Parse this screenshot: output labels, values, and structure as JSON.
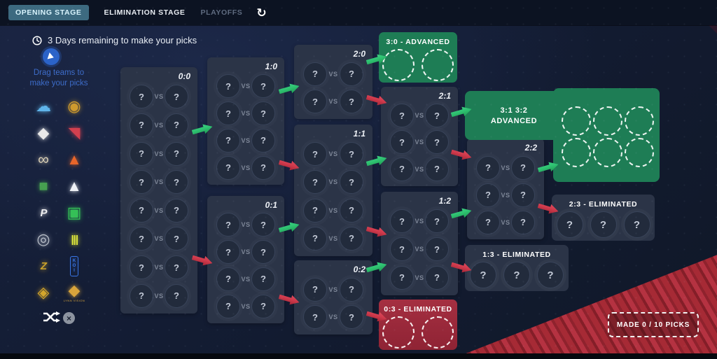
{
  "header": {
    "tabs": [
      {
        "label": "OPENING STAGE",
        "active": true
      },
      {
        "label": "ELIMINATION STAGE",
        "active": false
      },
      {
        "label": "PLAYOFFS",
        "active": false
      }
    ]
  },
  "icons": {
    "refresh": "↻",
    "clock": "clock-face",
    "shuffle": "shuffle-arrows",
    "clear": "×"
  },
  "status": {
    "text": "3 Days remaining to make your picks"
  },
  "sidebar": {
    "instruction_line1": "Drag teams to",
    "instruction_line2": "make your picks",
    "teams": [
      {
        "name": "cloud9",
        "glyph": "☁",
        "color": "#5fb4ea",
        "style": "shape"
      },
      {
        "name": "eternal-fire",
        "glyph": "◉",
        "color": "#cf9b2e",
        "style": "shape"
      },
      {
        "name": "furia",
        "glyph": "◆",
        "color": "#e9e9e9",
        "style": "shape"
      },
      {
        "name": "heroic",
        "glyph": "◥",
        "color": "#d2404f",
        "style": "shape"
      },
      {
        "name": "ecstatic",
        "glyph": "∞",
        "color": "#d9cfb6",
        "style": "shape"
      },
      {
        "name": "amkal",
        "glyph": "▲",
        "color": "#e8662a",
        "style": "shape"
      },
      {
        "name": "9pandas",
        "glyph": "■",
        "color": "#46a050",
        "style": "shape"
      },
      {
        "name": "apeks",
        "glyph": "▲",
        "color": "#eef1f5",
        "style": "shape"
      },
      {
        "name": "pain-gaming",
        "glyph": "P",
        "color": "#f0f0f2",
        "style": "text"
      },
      {
        "name": "imperial",
        "glyph": "▣",
        "color": "#35c057",
        "style": "shape"
      },
      {
        "name": "ence",
        "glyph": "◎",
        "color": "#b9bfc9",
        "style": "shape"
      },
      {
        "name": "saw",
        "glyph": "|||",
        "color": "#dfe83b",
        "style": "text"
      },
      {
        "name": "legacy",
        "glyph": "Z",
        "color": "#c9a22b",
        "style": "text"
      },
      {
        "name": "koi",
        "glyph": "KOI",
        "color": "#3a77e8",
        "style": "badge"
      },
      {
        "name": "the-mongolz",
        "glyph": "◈",
        "color": "#d4a62c",
        "style": "shape"
      },
      {
        "name": "lynn-vision",
        "glyph": "◆",
        "color": "#d8a43c",
        "style": "shape",
        "sublabel": "LYNN VISION"
      }
    ]
  },
  "bracket": {
    "placeholder": "?",
    "vs": "VS",
    "groups": [
      {
        "key": "g00",
        "label": "0:0",
        "matches": 8
      },
      {
        "key": "g10",
        "label": "1:0",
        "matches": 4
      },
      {
        "key": "g01",
        "label": "0:1",
        "matches": 4
      },
      {
        "key": "g20",
        "label": "2:0",
        "matches": 2
      },
      {
        "key": "g11",
        "label": "1:1",
        "matches": 4
      },
      {
        "key": "g02",
        "label": "0:2",
        "matches": 2
      },
      {
        "key": "g21",
        "label": "2:1",
        "matches": 3
      },
      {
        "key": "g12",
        "label": "1:2",
        "matches": 3
      },
      {
        "key": "g22",
        "label": "2:2",
        "matches": 3
      }
    ],
    "outcomes": [
      {
        "key": "adv30",
        "label": "3:0 - ADVANCED",
        "slots": 2,
        "slot_style": "dashed",
        "tone": "green"
      },
      {
        "key": "adv31",
        "line1": "3:1 3:2",
        "line2": "ADVANCED",
        "slots": 6,
        "slot_style": "dashed",
        "tone": "green"
      },
      {
        "key": "elim03",
        "label": "0:3 - ELIMINATED",
        "slots": 2,
        "slot_style": "dashed",
        "tone": "red"
      },
      {
        "key": "elim13",
        "label": "1:3 - ELIMINATED",
        "slots": 3,
        "slot_style": "question",
        "tone": "dark"
      },
      {
        "key": "elim23",
        "label": "2:3 - ELIMINATED",
        "slots": 3,
        "slot_style": "question",
        "tone": "dark"
      }
    ]
  },
  "footer": {
    "picks_label": "MADE 0 / 10 PICKS",
    "picks_made": 0,
    "picks_total": 10
  },
  "colors": {
    "advance_green": "#1e7d55",
    "eliminate_red": "#a52f41",
    "arrow_green": "#2fc272",
    "arrow_red": "#cf3a4c",
    "tab_active_bg": "#3d6a80",
    "accent_blue": "#3d6cc9"
  }
}
